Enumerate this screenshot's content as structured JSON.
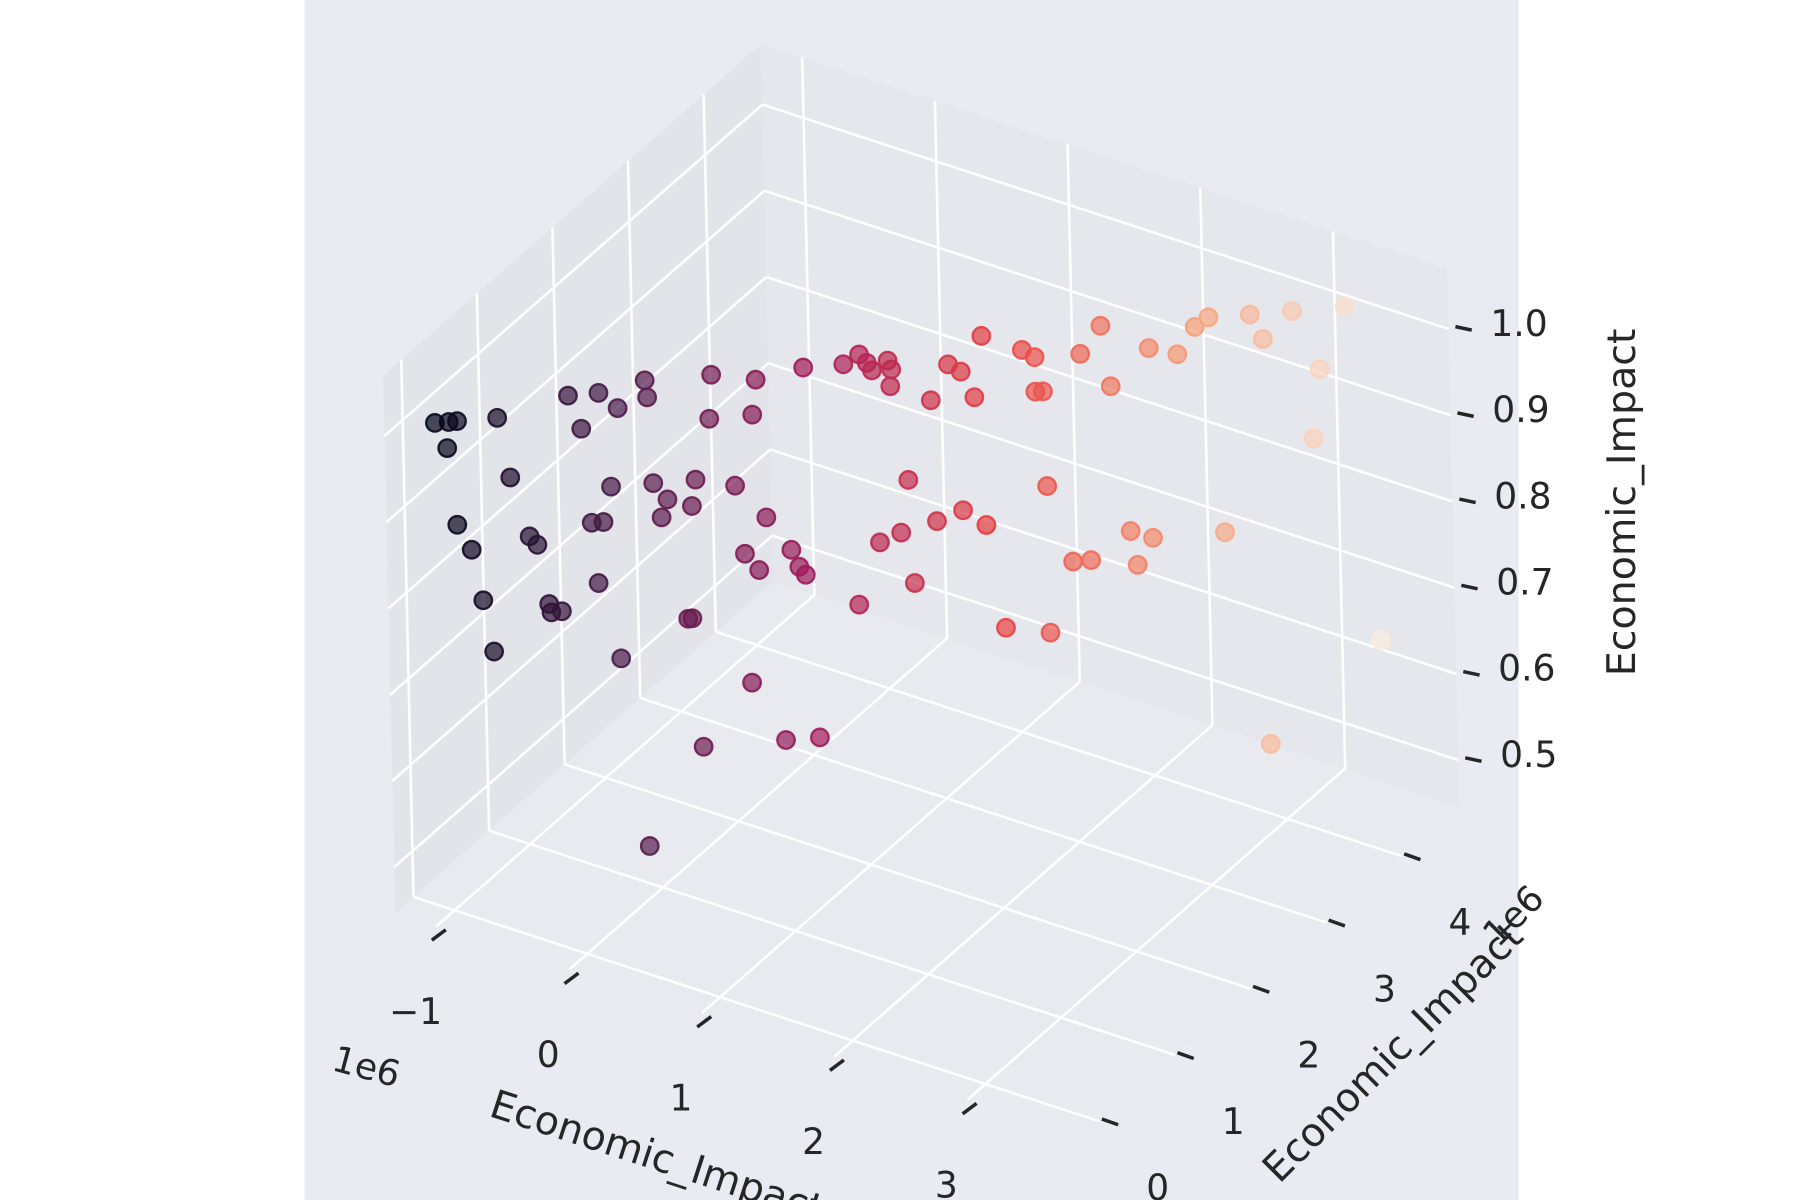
{
  "chart_data": {
    "type": "scatter3d",
    "x_label": "Economic_Impact",
    "y_label": "Economic_Impact",
    "z_label": "Economic_Impact",
    "x_offset_label": "1e6",
    "y_offset_label": "1e6",
    "xlim": [
      -1310000,
      3860000
    ],
    "ylim": [
      -240000,
      4760000
    ],
    "zlim": [
      0.447,
      1.07
    ],
    "xticks": [
      {
        "value": -1000000,
        "label": "−1"
      },
      0,
      {
        "value": 1000000,
        "label": "1"
      },
      {
        "value": 2000000,
        "label": "2"
      },
      {
        "value": 3000000,
        "label": "3"
      }
    ],
    "yticks": [
      0,
      {
        "value": 1000000,
        "label": "1"
      },
      {
        "value": 2000000,
        "label": "2"
      },
      {
        "value": 3000000,
        "label": "3"
      },
      {
        "value": 4000000,
        "label": "4"
      }
    ],
    "zticks": [
      0.5,
      0.6,
      0.7,
      0.8,
      0.9,
      {
        "value": 1,
        "label": "1.0"
      }
    ],
    "grid": true,
    "alpha": 0.7,
    "colormap": [
      "#03051a",
      "#4c1d4b",
      "#a11a5b",
      "#e83f3f",
      "#f69c73",
      "#faebdd"
    ],
    "x": [
      -1060000,
      -990000,
      -950000,
      -1000000,
      -750000,
      -690000,
      -960000,
      -890000,
      -840000,
      -790000,
      -600000,
      -560000,
      -510000,
      -500000,
      -450000,
      -390000,
      -330000,
      -240000,
      -150000,
      -10000,
      0,
      -260000,
      -290000,
      -230000,
      -190000,
      -160000,
      20000,
      90000,
      60000,
      210000,
      230000,
      320000,
      310000,
      520000,
      540000,
      430000,
      580000,
      470000,
      540000,
      700000,
      740000,
      770000,
      200000,
      180000,
      490000,
      240000,
      -40000,
      650000,
      820000,
      780000,
      980000,
      1060000,
      1100000,
      1120000,
      1200000,
      1220000,
      1210000,
      1030000,
      1140000,
      1250000,
      1290000,
      1310000,
      1410000,
      1430000,
      1500000,
      1560000,
      1560000,
      1630000,
      1670000,
      1670000,
      1760000,
      1870000,
      1930000,
      1930000,
      1970000,
      1980000,
      1980000,
      2100000,
      2160000,
      2190000,
      2260000,
      2310000,
      2390000,
      2420000,
      2500000,
      2500000,
      2640000,
      2730000,
      2800000,
      2860000,
      3010000,
      3070000,
      3220000,
      3310000,
      3350000,
      3480000,
      3620000,
      3060000
    ],
    "y": [
      -10000,
      50000,
      90000,
      40000,
      270000,
      320000,
      80000,
      140000,
      190000,
      230000,
      400000,
      430000,
      480000,
      490000,
      540000,
      580000,
      640000,
      720000,
      810000,
      930000,
      940000,
      700000,
      680000,
      730000,
      770000,
      800000,
      960000,
      1020000,
      990000,
      1130000,
      1150000,
      1230000,
      1210000,
      1410000,
      1430000,
      1320000,
      1460000,
      1360000,
      1420000,
      1570000,
      1600000,
      1630000,
      1120000,
      1100000,
      1380000,
      1160000,
      910000,
      1530000,
      1680000,
      1640000,
      1820000,
      1890000,
      1920000,
      1950000,
      2020000,
      2030000,
      2030000,
      1870000,
      1970000,
      2060000,
      2100000,
      2120000,
      2210000,
      2220000,
      2290000,
      2350000,
      2340000,
      2400000,
      2440000,
      2450000,
      2520000,
      2620000,
      2680000,
      2680000,
      2710000,
      2720000,
      2720000,
      2830000,
      2880000,
      2910000,
      2980000,
      3010000,
      3090000,
      3120000,
      3190000,
      3190000,
      3320000,
      3400000,
      3460000,
      3510000,
      3640000,
      3700000,
      3830000,
      3920000,
      3950000,
      4070000,
      4200000,
      3700000
    ],
    "z": [
      1.01,
      1.01,
      1.01,
      0.98,
      1.01,
      0.94,
      0.89,
      0.86,
      0.8,
      0.74,
      0.87,
      0.86,
      0.79,
      0.78,
      0.78,
      1.03,
      0.99,
      1.03,
      1.01,
      1.04,
      1.02,
      0.81,
      0.88,
      0.88,
      0.92,
      0.72,
      0.92,
      0.9,
      0.88,
      0.89,
      0.92,
      1.04,
      0.99,
      0.99,
      1.03,
      0.91,
      0.87,
      0.83,
      0.81,
      0.83,
      0.81,
      0.8,
      0.76,
      0.76,
      0.68,
      0.61,
      0.5,
      0.61,
      0.61,
      1.04,
      1.04,
      1.05,
      1.04,
      1.03,
      1.04,
      1.03,
      1.01,
      0.76,
      0.83,
      0.84,
      0.9,
      0.78,
      0.99,
      0.85,
      1.03,
      1.02,
      0.86,
      0.99,
      1.06,
      0.84,
      0.72,
      1.04,
      1.03,
      0.99,
      0.99,
      0.88,
      0.71,
      0.79,
      1.03,
      0.79,
      1.06,
      0.99,
      0.82,
      0.78,
      1.03,
      0.81,
      1.02,
      1.05,
      1.06,
      0.81,
      1.06,
      1.03,
      1.06,
      0.91,
      0.99,
      1.06,
      0.67,
      0.56
    ]
  }
}
